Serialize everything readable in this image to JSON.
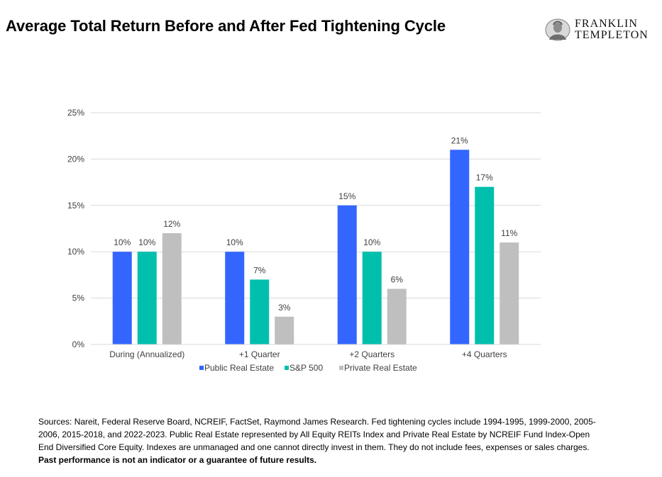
{
  "title": "Average Total Return Before and After Fed Tightening Cycle",
  "logo": {
    "line1": "FRANKLIN",
    "line2": "TEMPLETON"
  },
  "chart_data": {
    "type": "bar",
    "categories": [
      "During (Annualized)",
      "+1 Quarter",
      "+2 Quarters",
      "+4 Quarters"
    ],
    "series": [
      {
        "name": "Public Real Estate",
        "values": [
          10,
          10,
          15,
          21
        ],
        "labels": [
          "10%",
          "10%",
          "15%",
          "21%"
        ],
        "color": "#3366ff"
      },
      {
        "name": "S&P 500",
        "values": [
          10,
          7,
          10,
          17
        ],
        "labels": [
          "10%",
          "7%",
          "10%",
          "17%"
        ],
        "color": "#00bfad"
      },
      {
        "name": "Private Real Estate",
        "values": [
          12,
          3,
          6,
          11
        ],
        "labels": [
          "12%",
          "3%",
          "6%",
          "11%"
        ],
        "color": "#bfbfbf"
      }
    ],
    "ylim": [
      0,
      25
    ],
    "yticks": [
      0,
      5,
      10,
      15,
      20,
      25
    ],
    "ytick_labels": [
      "0%",
      "5%",
      "10%",
      "15%",
      "20%",
      "25%"
    ],
    "grid": true,
    "legend_position": "bottom"
  },
  "footnote": {
    "text": "Sources: Nareit, Federal Reserve Board, NCREIF, FactSet, Raymond James Research. Fed tightening cycles include 1994-1995, 1999-2000, 2005-2006, 2015-2018, and 2022-2023. Public Real Estate represented by All Equity REITs Index and Private Real Estate by NCREIF Fund Index-Open End Diversified Core Equity. Indexes are unmanaged and one cannot directly invest in them. They do not include fees, expenses or sales charges.",
    "bold": " Past performance is not an indicator or a guarantee of future results."
  }
}
